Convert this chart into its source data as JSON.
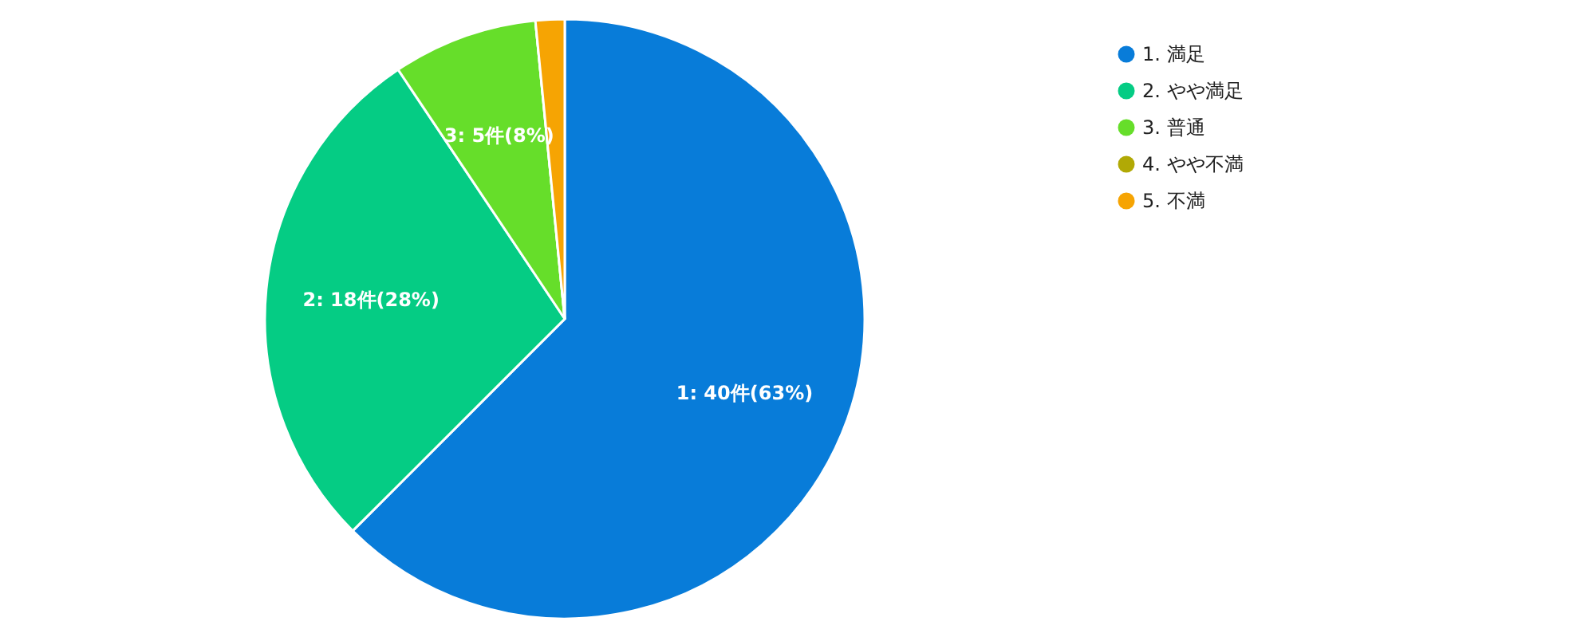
{
  "chart_data": {
    "type": "pie",
    "categories": [
      "1. 満足",
      "2. やや満足",
      "3. 普通",
      "4. やや不満",
      "5. 不満"
    ],
    "values": [
      40,
      18,
      5,
      0,
      1
    ],
    "colors": [
      "#087cd9",
      "#05cc84",
      "#66de2a",
      "#b1a905",
      "#f6a403"
    ],
    "value_labels": [
      "1: 40件(63%)",
      "2: 18件(28%)",
      "3: 5件(8%)",
      null,
      null
    ],
    "legend": "top right"
  }
}
